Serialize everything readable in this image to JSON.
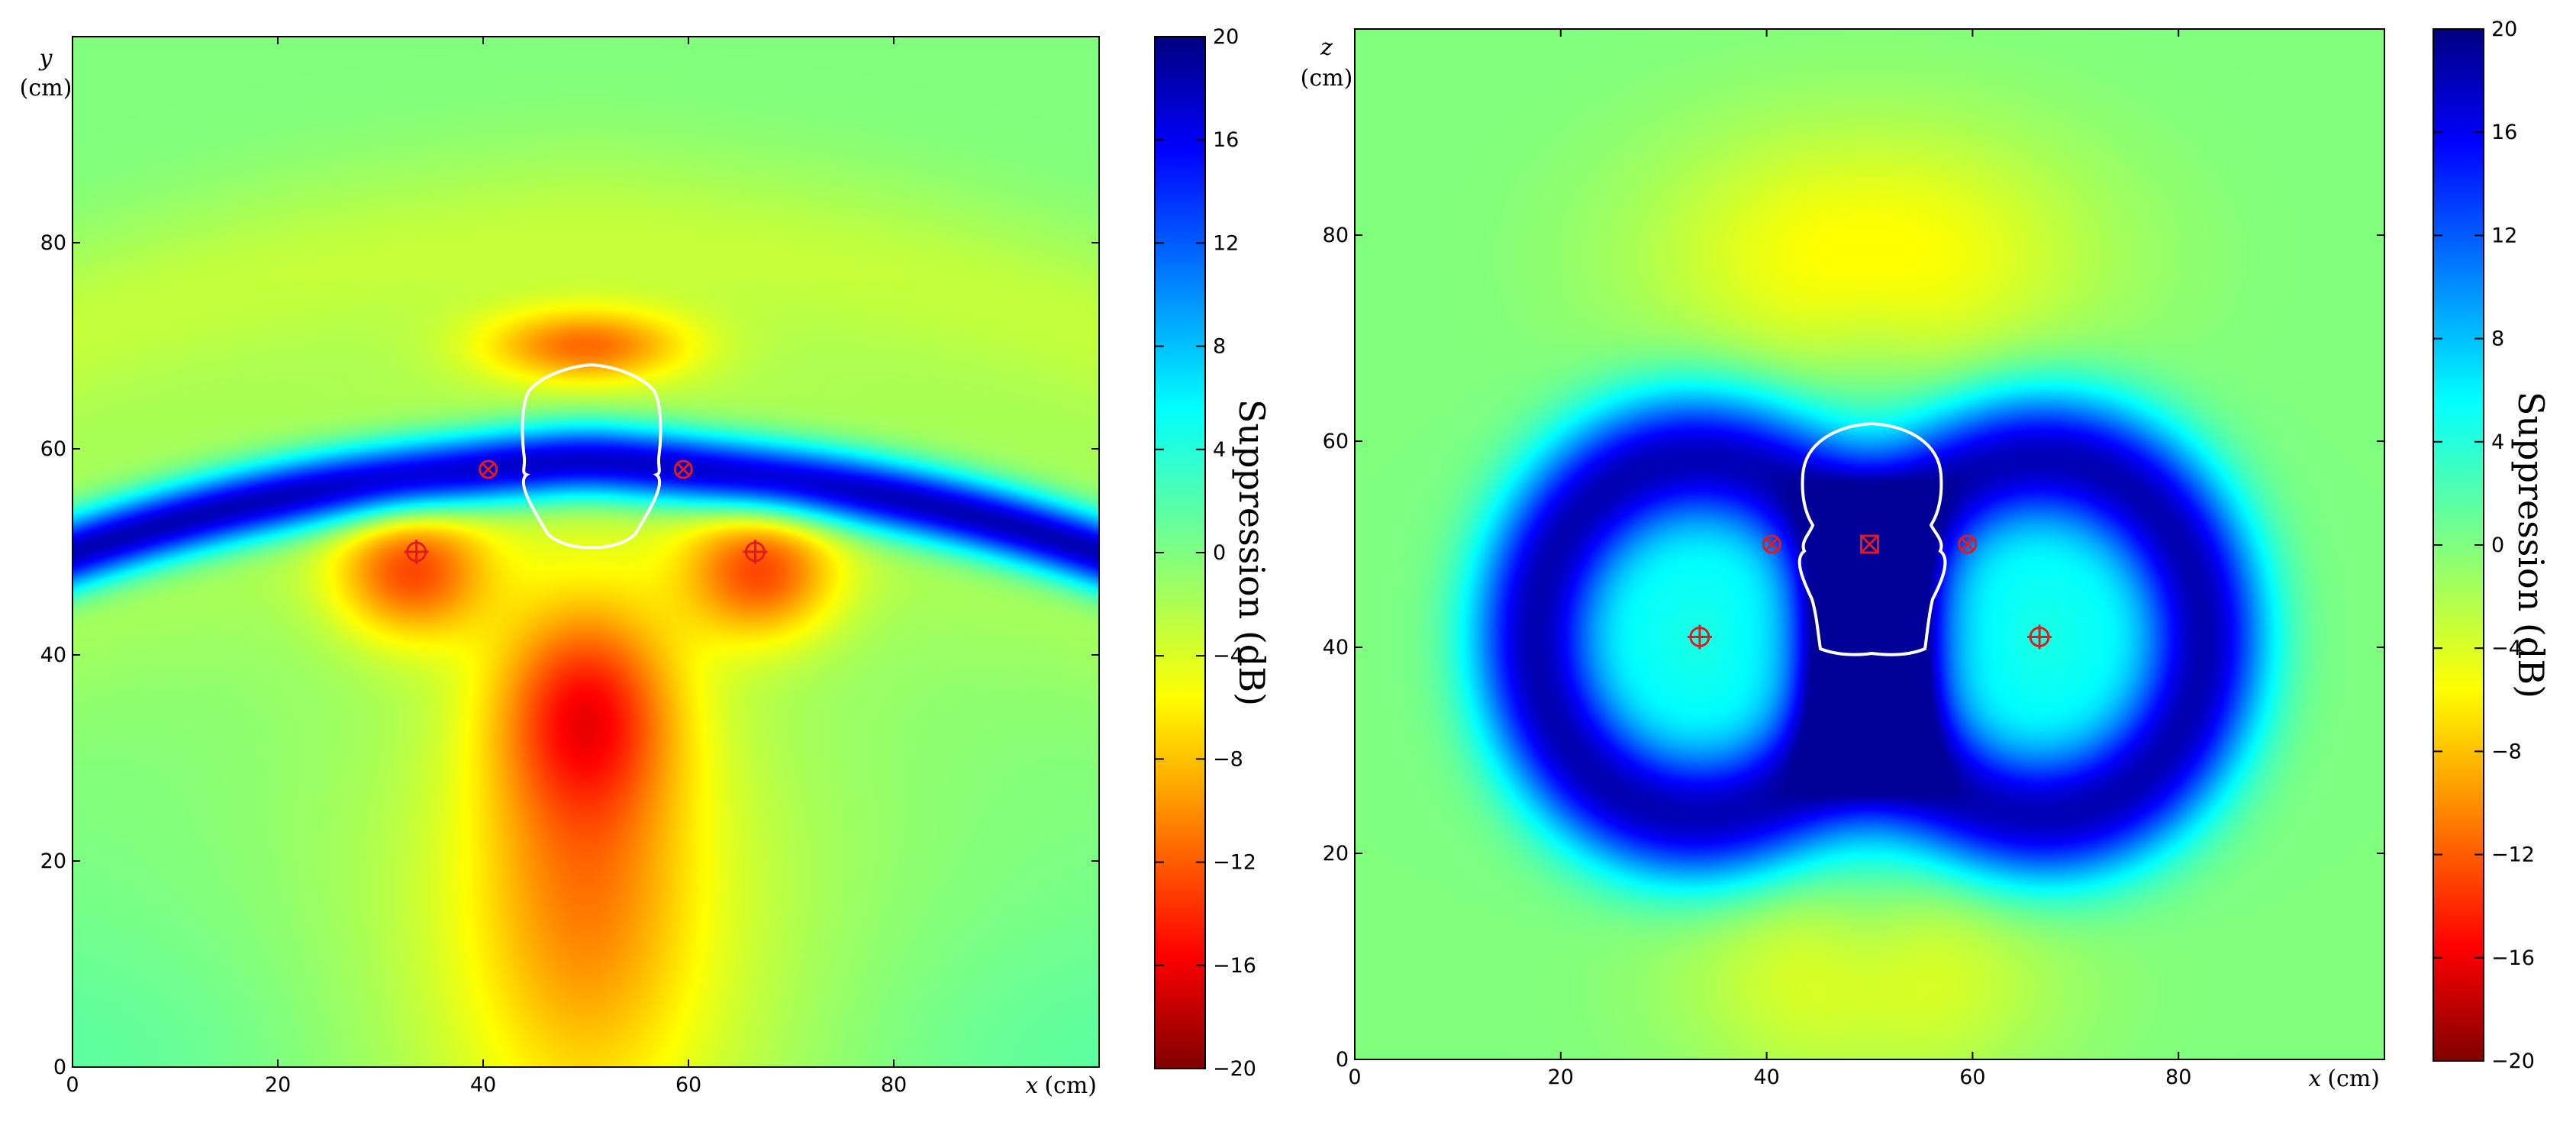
{
  "chart_data": [
    {
      "type": "heatmap",
      "panel": "left",
      "xlabel_var": "x",
      "xlabel_unit": "(cm)",
      "ylabel_var": "y",
      "ylabel_unit": "(cm)",
      "xlim": [
        0,
        100
      ],
      "ylim": [
        0,
        100
      ],
      "xticks": [
        0,
        20,
        40,
        60,
        80
      ],
      "yticks": [
        0,
        20,
        40,
        60,
        80
      ],
      "colorbar": {
        "label": "Suppression (dB)",
        "range": [
          -20,
          20
        ],
        "ticks": [
          "20",
          "16",
          "12",
          "8",
          "4",
          "0",
          "−4",
          "−8",
          "−12",
          "−16",
          "−20"
        ],
        "colormap": "jet"
      },
      "head_outline": "top view",
      "markers": {
        "sources": [
          {
            "x": 33.5,
            "y": 50
          },
          {
            "x": 66.5,
            "y": 50
          }
        ],
        "microphones": [
          {
            "x": 40.5,
            "y": 58
          },
          {
            "x": 59.5,
            "y": 58
          }
        ]
      },
      "features": {
        "band_peak_db": 18,
        "band_center_y": 58,
        "lobe_min_db": -10,
        "lower_lobe_center": {
          "x": 50,
          "y": 35
        },
        "upper_lobe_center": {
          "x": 50,
          "y": 70
        }
      }
    },
    {
      "type": "heatmap",
      "panel": "right",
      "xlabel_var": "x",
      "xlabel_unit": "(cm)",
      "ylabel_var": "z",
      "ylabel_unit": "(cm)",
      "xlim": [
        0,
        100
      ],
      "ylim": [
        0,
        100
      ],
      "xticks": [
        0,
        20,
        40,
        60,
        80
      ],
      "yticks": [
        0,
        20,
        40,
        60,
        80
      ],
      "colorbar": {
        "label": "Suppression (dB)",
        "range": [
          -20,
          20
        ],
        "ticks": [
          "20",
          "16",
          "12",
          "8",
          "4",
          "0",
          "−4",
          "−8",
          "−12",
          "−16",
          "−20"
        ],
        "colormap": "jet"
      },
      "head_outline": "front view",
      "markers": {
        "sources": [
          {
            "x": 33.5,
            "y": 41
          },
          {
            "x": 66.5,
            "y": 41
          }
        ],
        "microphones": [
          {
            "x": 40.5,
            "y": 50
          },
          {
            "x": 59.5,
            "y": 50
          }
        ],
        "reference": {
          "x": 50,
          "y": 50
        }
      },
      "features": {
        "ring_peak_db": 18,
        "ring_centers": [
          {
            "x": 33.5,
            "y": 41
          },
          {
            "x": 66.5,
            "y": 41
          }
        ],
        "ring_radius_cm": 16
      }
    }
  ]
}
